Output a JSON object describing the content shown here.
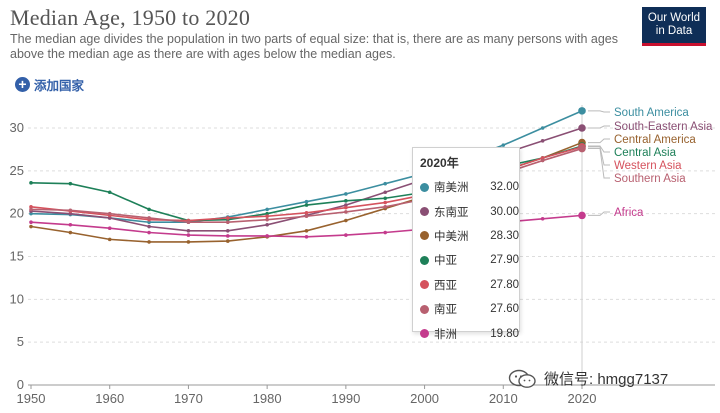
{
  "header": {
    "title": "Median Age, 1950 to 2020",
    "subtitle": "The median age divides the population in two parts of equal size: that is, there are as many persons with ages above the median age as there are with ages below the median ages.",
    "logo_line1": "Our World",
    "logo_line2": "in Data",
    "add_country_label": "添加国家"
  },
  "chart_data": {
    "type": "line",
    "x": [
      1950,
      1955,
      1960,
      1965,
      1970,
      1975,
      1980,
      1985,
      1990,
      1995,
      2000,
      2005,
      2010,
      2015,
      2020
    ],
    "x_ticks": [
      1950,
      1960,
      1970,
      1980,
      1990,
      2000,
      2010,
      2020
    ],
    "y_ticks": [
      0,
      5,
      10,
      15,
      20,
      25,
      30
    ],
    "ylim": [
      0,
      32
    ],
    "xlim": [
      1949,
      2021
    ],
    "grid": true,
    "series": [
      {
        "name": "South America",
        "color": "#3c8ea0",
        "values": [
          20.0,
          19.9,
          19.5,
          19.0,
          19.0,
          19.6,
          20.5,
          21.4,
          22.3,
          23.5,
          24.7,
          26.3,
          28.0,
          30.0,
          32.0
        ]
      },
      {
        "name": "South-Eastern Asia",
        "color": "#8a4f74",
        "values": [
          20.3,
          20.0,
          19.5,
          18.5,
          18.0,
          18.0,
          18.7,
          19.8,
          21.0,
          22.5,
          24.0,
          25.5,
          27.0,
          28.5,
          30.0
        ]
      },
      {
        "name": "Central America",
        "color": "#98622e",
        "values": [
          18.5,
          17.8,
          17.0,
          16.7,
          16.7,
          16.8,
          17.3,
          18.0,
          19.2,
          20.6,
          22.0,
          23.5,
          25.0,
          26.5,
          28.3
        ]
      },
      {
        "name": "Central Asia",
        "color": "#1e8059",
        "values": [
          23.6,
          23.5,
          22.5,
          20.5,
          19.2,
          19.3,
          20.0,
          21.0,
          21.5,
          21.8,
          22.5,
          24.0,
          25.5,
          26.5,
          27.9
        ]
      },
      {
        "name": "Western Asia",
        "color": "#d5525d",
        "values": [
          20.8,
          20.3,
          19.8,
          19.3,
          19.2,
          19.5,
          19.7,
          20.1,
          20.7,
          21.3,
          22.2,
          23.5,
          25.0,
          26.5,
          27.8
        ]
      },
      {
        "name": "Southern Asia",
        "color": "#b86070",
        "values": [
          20.5,
          20.4,
          20.0,
          19.5,
          19.0,
          19.0,
          19.3,
          19.7,
          20.2,
          20.8,
          21.7,
          23.0,
          24.7,
          26.2,
          27.6
        ]
      },
      {
        "name": "Africa",
        "color": "#c43b8d",
        "values": [
          19.0,
          18.7,
          18.3,
          17.8,
          17.5,
          17.4,
          17.4,
          17.3,
          17.5,
          17.8,
          18.2,
          18.6,
          19.0,
          19.4,
          19.8
        ]
      }
    ]
  },
  "tooltip": {
    "year": "2020年",
    "rows": [
      {
        "name": "南美洲",
        "value": "32.00",
        "color": "#3c8ea0"
      },
      {
        "name": "东南亚",
        "value": "30.00",
        "color": "#8a4f74"
      },
      {
        "name": "中美洲",
        "value": "28.30",
        "color": "#98622e"
      },
      {
        "name": "中亚",
        "value": "27.90",
        "color": "#1e8059"
      },
      {
        "name": "西亚",
        "value": "27.80",
        "color": "#d5525d"
      },
      {
        "name": "南亚",
        "value": "27.60",
        "color": "#b86070"
      },
      {
        "name": "非洲",
        "value": "19.80",
        "color": "#c43b8d"
      }
    ]
  },
  "watermark": {
    "text": "微信号: hmgg7137"
  }
}
